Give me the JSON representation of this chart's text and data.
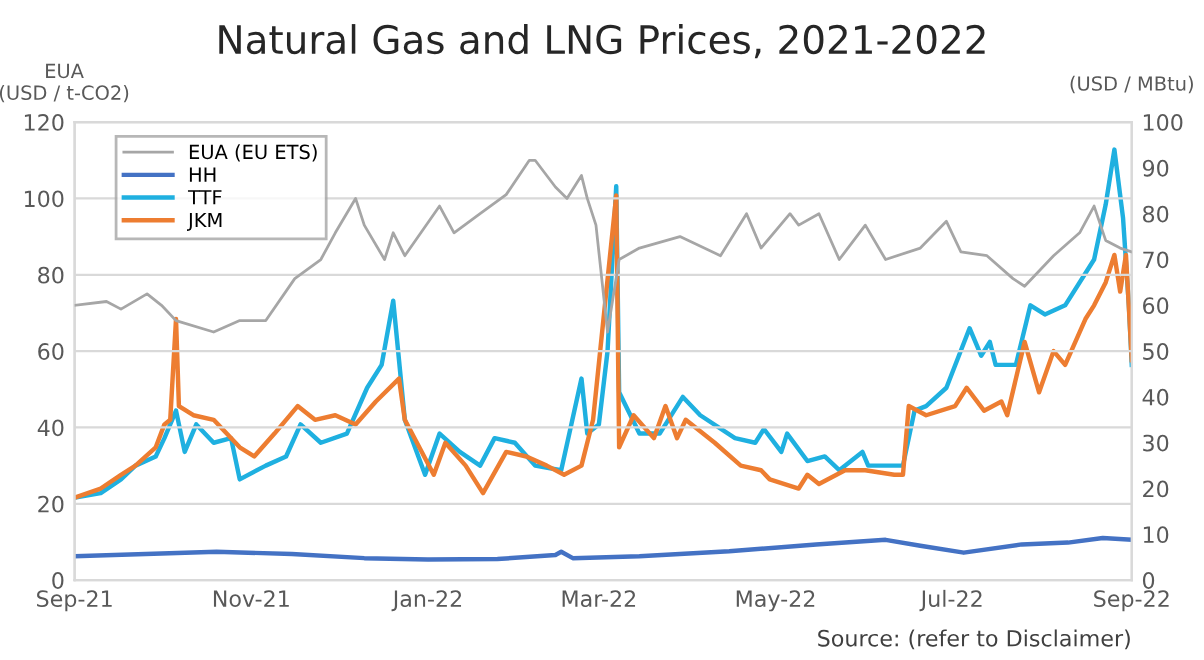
{
  "chart_data": {
    "type": "line",
    "title": "Natural Gas and LNG Prices, 2021-2022",
    "ylabel": "EUA\n(USD / t-CO2)",
    "y2label": "(USD / MBtu)",
    "annotations": [
      "Source: (refer to Disclaimer)"
    ],
    "xlim": [
      "2021-09-01",
      "2022-09-01"
    ],
    "xticks": [
      {
        "value": "2021-09-01",
        "label": "Sep-21"
      },
      {
        "value": "2021-11-01",
        "label": "Nov-21"
      },
      {
        "value": "2022-01-01",
        "label": "Jan-22"
      },
      {
        "value": "2022-03-01",
        "label": "Mar-22"
      },
      {
        "value": "2022-05-01",
        "label": "May-22"
      },
      {
        "value": "2022-07-01",
        "label": "Jul-22"
      },
      {
        "value": "2022-09-01",
        "label": "Sep-22"
      }
    ],
    "ylim": [
      0,
      120
    ],
    "yticks": [
      0,
      20,
      40,
      60,
      80,
      100,
      120
    ],
    "y2lim": [
      0,
      100
    ],
    "y2ticks": [
      0,
      10,
      20,
      30,
      40,
      50,
      60,
      70,
      80,
      90,
      100
    ],
    "grid": "y",
    "legend": "top left",
    "marker": "none",
    "line_style": "solid",
    "series": [
      {
        "name": "EUA (EU ETS)",
        "color": "#a6a6a6",
        "x": [
          "2021-09-01",
          "2021-09-12",
          "2021-09-17",
          "2021-09-26",
          "2021-10-01",
          "2021-10-06",
          "2021-10-19",
          "2021-10-28",
          "2021-11-06",
          "2021-11-16",
          "2021-11-25",
          "2021-11-30",
          "2021-12-07",
          "2021-12-10",
          "2021-12-17",
          "2021-12-20",
          "2021-12-24",
          "2022-01-05",
          "2022-01-10",
          "2022-01-19",
          "2022-01-28",
          "2022-02-05",
          "2022-02-07",
          "2022-02-14",
          "2022-02-18",
          "2022-02-23",
          "2022-02-25",
          "2022-02-28",
          "2022-03-04",
          "2022-03-08",
          "2022-03-15",
          "2022-03-29",
          "2022-04-12",
          "2022-04-21",
          "2022-04-26",
          "2022-05-06",
          "2022-05-09",
          "2022-05-16",
          "2022-05-23",
          "2022-06-01",
          "2022-06-08",
          "2022-06-20",
          "2022-06-29",
          "2022-07-04",
          "2022-07-13",
          "2022-07-22",
          "2022-07-26",
          "2022-08-05",
          "2022-08-14",
          "2022-08-19",
          "2022-08-23",
          "2022-08-28",
          "2022-09-01"
        ],
        "values": [
          72,
          73,
          71,
          75,
          72,
          68,
          65,
          68,
          68,
          79,
          84,
          91,
          100,
          93,
          84,
          91,
          85,
          98,
          91,
          96,
          101,
          110,
          110,
          103,
          100,
          106,
          100,
          93,
          65,
          84,
          87,
          90,
          85,
          96,
          87,
          96,
          93,
          96,
          84,
          93,
          84,
          87,
          94,
          86,
          85,
          79,
          77,
          85,
          91,
          98,
          89,
          87,
          86
        ]
      },
      {
        "name": "HH",
        "color": "#4472c4",
        "axis": "y2",
        "x": [
          "2021-09-01",
          "2021-10-01",
          "2021-10-20",
          "2021-11-15",
          "2021-12-10",
          "2022-01-01",
          "2022-01-25",
          "2022-02-14",
          "2022-02-16",
          "2022-02-20",
          "2022-03-15",
          "2022-04-15",
          "2022-05-15",
          "2022-06-08",
          "2022-06-20",
          "2022-07-05",
          "2022-07-25",
          "2022-08-10",
          "2022-08-22",
          "2022-09-01"
        ],
        "values": [
          5.2,
          5.8,
          6.2,
          5.7,
          4.8,
          4.5,
          4.6,
          5.5,
          6.2,
          4.8,
          5.2,
          6.3,
          7.8,
          8.8,
          7.5,
          6.0,
          7.8,
          8.2,
          9.2,
          8.8
        ]
      },
      {
        "name": "TTF",
        "color": "#1fb0e0",
        "axis": "y2",
        "x": [
          "2021-09-01",
          "2021-09-10",
          "2021-09-17",
          "2021-09-22",
          "2021-09-29",
          "2021-10-02",
          "2021-10-06",
          "2021-10-09",
          "2021-10-13",
          "2021-10-19",
          "2021-10-25",
          "2021-10-28",
          "2021-11-06",
          "2021-11-13",
          "2021-11-18",
          "2021-11-25",
          "2021-12-04",
          "2021-12-11",
          "2021-12-16",
          "2021-12-20",
          "2021-12-24",
          "2021-12-31",
          "2022-01-05",
          "2022-01-12",
          "2022-01-19",
          "2022-01-24",
          "2022-01-31",
          "2022-02-07",
          "2022-02-16",
          "2022-02-23",
          "2022-02-25",
          "2022-03-01",
          "2022-03-04",
          "2022-03-07",
          "2022-03-08",
          "2022-03-15",
          "2022-03-22",
          "2022-03-30",
          "2022-04-05",
          "2022-04-17",
          "2022-04-24",
          "2022-04-27",
          "2022-05-03",
          "2022-05-05",
          "2022-05-12",
          "2022-05-18",
          "2022-05-23",
          "2022-05-31",
          "2022-06-02",
          "2022-06-11",
          "2022-06-14",
          "2022-06-18",
          "2022-06-22",
          "2022-06-29",
          "2022-07-07",
          "2022-07-11",
          "2022-07-14",
          "2022-07-16",
          "2022-07-23",
          "2022-07-28",
          "2022-08-02",
          "2022-08-09",
          "2022-08-19",
          "2022-08-23",
          "2022-08-26",
          "2022-08-29",
          "2022-08-31",
          "2022-09-01"
        ],
        "values": [
          18,
          19,
          22,
          25,
          27,
          31,
          37,
          28,
          34,
          30,
          31,
          22,
          25,
          27,
          34,
          30,
          32,
          42,
          47,
          61,
          35,
          23,
          32,
          28,
          25,
          31,
          30,
          25,
          24,
          44,
          32,
          34,
          50,
          86,
          41,
          32,
          32,
          40,
          36,
          31,
          30,
          33,
          28,
          32,
          26,
          27,
          24,
          28,
          25,
          25,
          25,
          37,
          38,
          42,
          55,
          49,
          52,
          47,
          47,
          60,
          58,
          60,
          70,
          82,
          94,
          79,
          60,
          47
        ]
      },
      {
        "name": "JKM",
        "color": "#ed7d31",
        "axis": "y2",
        "x": [
          "2021-09-01",
          "2021-09-10",
          "2021-09-17",
          "2021-09-22",
          "2021-09-29",
          "2021-10-02",
          "2021-10-04",
          "2021-10-06",
          "2021-10-07",
          "2021-10-12",
          "2021-10-19",
          "2021-10-28",
          "2021-11-02",
          "2021-11-09",
          "2021-11-17",
          "2021-11-23",
          "2021-11-30",
          "2021-12-07",
          "2021-12-14",
          "2021-12-22",
          "2021-12-24",
          "2022-01-03",
          "2022-01-07",
          "2022-01-14",
          "2022-01-20",
          "2022-01-28",
          "2022-02-04",
          "2022-02-11",
          "2022-02-17",
          "2022-02-23",
          "2022-02-27",
          "2022-03-07",
          "2022-03-08",
          "2022-03-13",
          "2022-03-20",
          "2022-03-24",
          "2022-03-28",
          "2022-03-31",
          "2022-04-10",
          "2022-04-19",
          "2022-04-26",
          "2022-04-29",
          "2022-05-09",
          "2022-05-12",
          "2022-05-16",
          "2022-05-25",
          "2022-06-01",
          "2022-06-11",
          "2022-06-14",
          "2022-06-16",
          "2022-06-22",
          "2022-07-02",
          "2022-07-06",
          "2022-07-12",
          "2022-07-18",
          "2022-07-20",
          "2022-07-26",
          "2022-07-31",
          "2022-08-05",
          "2022-08-09",
          "2022-08-16",
          "2022-08-19",
          "2022-08-23",
          "2022-08-26",
          "2022-08-28",
          "2022-08-30",
          "2022-09-01"
        ],
        "values": [
          18,
          20,
          23,
          25,
          29,
          34,
          35,
          57,
          38,
          36,
          35,
          29,
          27,
          32,
          38,
          35,
          36,
          34,
          39,
          44,
          35,
          23,
          30,
          25,
          19,
          28,
          27,
          25,
          23,
          25,
          35,
          84,
          29,
          36,
          31,
          38,
          31,
          35,
          30,
          25,
          24,
          22,
          20,
          23,
          21,
          24,
          24,
          23,
          23,
          38,
          36,
          38,
          42,
          37,
          39,
          36,
          52,
          41,
          50,
          47,
          57,
          60,
          65,
          71,
          63,
          71,
          48
        ]
      }
    ]
  }
}
